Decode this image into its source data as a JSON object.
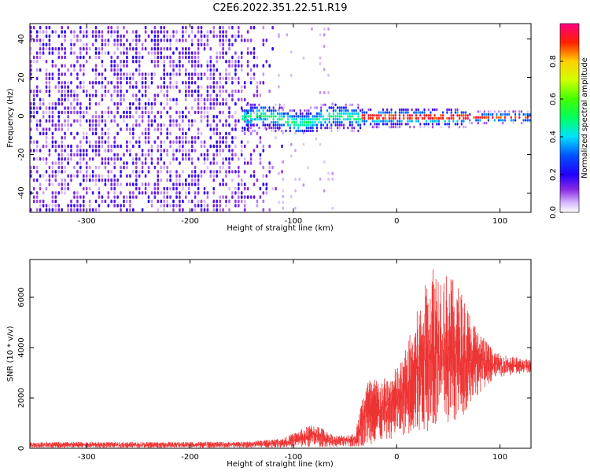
{
  "title": "C2E6.2022.351.22.51.R19",
  "chart_data": [
    {
      "type": "heatmap",
      "xlabel": "Height of straight line (km)",
      "ylabel": "Frequency (Hz)",
      "xlim": [
        -355,
        130
      ],
      "ylim": [
        -50,
        48
      ],
      "x_ticks": [
        -300,
        -200,
        -100,
        0,
        100
      ],
      "y_ticks": [
        -40,
        -20,
        0,
        20,
        40
      ],
      "grid": false,
      "colorbar": {
        "label": "Normalized spectral amplitude",
        "range": [
          0.0,
          1.0
        ],
        "ticks": [
          0.0,
          0.2,
          0.4,
          0.6,
          0.8
        ],
        "colors": [
          "#ffffff",
          "#e8d0ff",
          "#9b30ff",
          "#4b00ff",
          "#0000ff",
          "#00ffff",
          "#00ff00",
          "#ffff00",
          "#ff8000",
          "#ff0000",
          "#ff0080"
        ]
      },
      "description_regions": [
        {
          "x_range": [
            -355,
            -115
          ],
          "freq_range": [
            -50,
            48
          ],
          "amplitude": 0.12
        },
        {
          "x_range": [
            -150,
            -35
          ],
          "freq_range": [
            -8,
            8
          ],
          "amplitude": 0.4
        },
        {
          "x_range": [
            -35,
            130
          ],
          "freq_range": [
            -3,
            3
          ],
          "amplitude": 0.9
        }
      ]
    },
    {
      "type": "line",
      "xlabel": "Height of straight line (km)",
      "ylabel": "SNR (10 * v/v)",
      "xlim": [
        -355,
        130
      ],
      "ylim": [
        0,
        7500
      ],
      "x_ticks": [
        -300,
        -200,
        -100,
        0,
        100
      ],
      "y_ticks": [
        0,
        2000,
        4000,
        6000
      ],
      "grid": false,
      "series_color": "#ee3333",
      "envelope": [
        {
          "x": -355,
          "low": 20,
          "high": 250
        },
        {
          "x": -150,
          "low": 20,
          "high": 260
        },
        {
          "x": -110,
          "low": 30,
          "high": 400
        },
        {
          "x": -80,
          "low": 50,
          "high": 1000
        },
        {
          "x": -60,
          "low": 50,
          "high": 500
        },
        {
          "x": -40,
          "low": 50,
          "high": 600
        },
        {
          "x": -30,
          "low": 100,
          "high": 2800
        },
        {
          "x": -10,
          "low": 300,
          "high": 2800
        },
        {
          "x": 5,
          "low": 500,
          "high": 3500
        },
        {
          "x": 20,
          "low": 600,
          "high": 5500
        },
        {
          "x": 35,
          "low": 600,
          "high": 7500
        },
        {
          "x": 60,
          "low": 1000,
          "high": 6500
        },
        {
          "x": 75,
          "low": 2000,
          "high": 5000
        },
        {
          "x": 95,
          "low": 2800,
          "high": 3800
        },
        {
          "x": 130,
          "low": 3000,
          "high": 3500
        }
      ]
    }
  ]
}
